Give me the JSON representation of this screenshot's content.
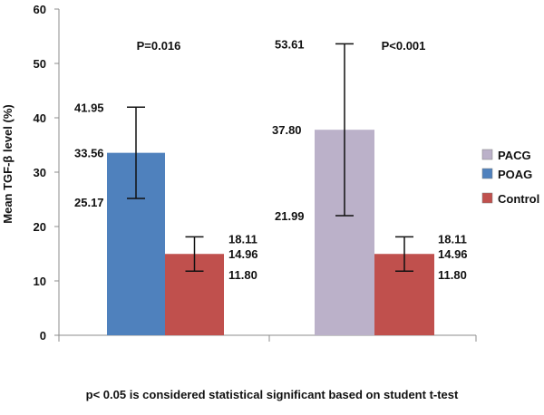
{
  "chart_data": {
    "type": "bar",
    "ylabel": "Mean TGF-β level (%)",
    "ylim": [
      0,
      60
    ],
    "yticks": [
      0,
      10,
      20,
      30,
      40,
      50,
      60
    ],
    "grid": false,
    "legend_position": "right",
    "groups": [
      {
        "p_value": "P=0.016",
        "bars": [
          {
            "series": "POAG",
            "mean": 33.56,
            "upper": 41.95,
            "lower": 25.17,
            "labels": {
              "mean": "33.56",
              "upper": "41.95",
              "lower": "25.17"
            }
          },
          {
            "series": "Control",
            "mean": 14.96,
            "upper": 18.11,
            "lower": 11.8,
            "labels": {
              "mean": "14.96",
              "upper": "18.11",
              "lower": "11.80"
            }
          }
        ]
      },
      {
        "p_value": "P<0.001",
        "bars": [
          {
            "series": "PACG",
            "mean": 37.8,
            "upper": 53.61,
            "lower": 21.99,
            "labels": {
              "mean": "37.80",
              "upper": "53.61",
              "lower": "21.99"
            }
          },
          {
            "series": "Control",
            "mean": 14.96,
            "upper": 18.11,
            "lower": 11.8,
            "labels": {
              "mean": "14.96",
              "upper": "18.11",
              "lower": "11.80"
            }
          }
        ]
      }
    ],
    "legend": [
      {
        "name": "PACG",
        "color": "#bbb1c9"
      },
      {
        "name": "POAG",
        "color": "#4f81bd"
      },
      {
        "name": "Control",
        "color": "#c0504d"
      }
    ],
    "footnote": "p< 0.05 is considered statistical significant based on  student t-test"
  }
}
